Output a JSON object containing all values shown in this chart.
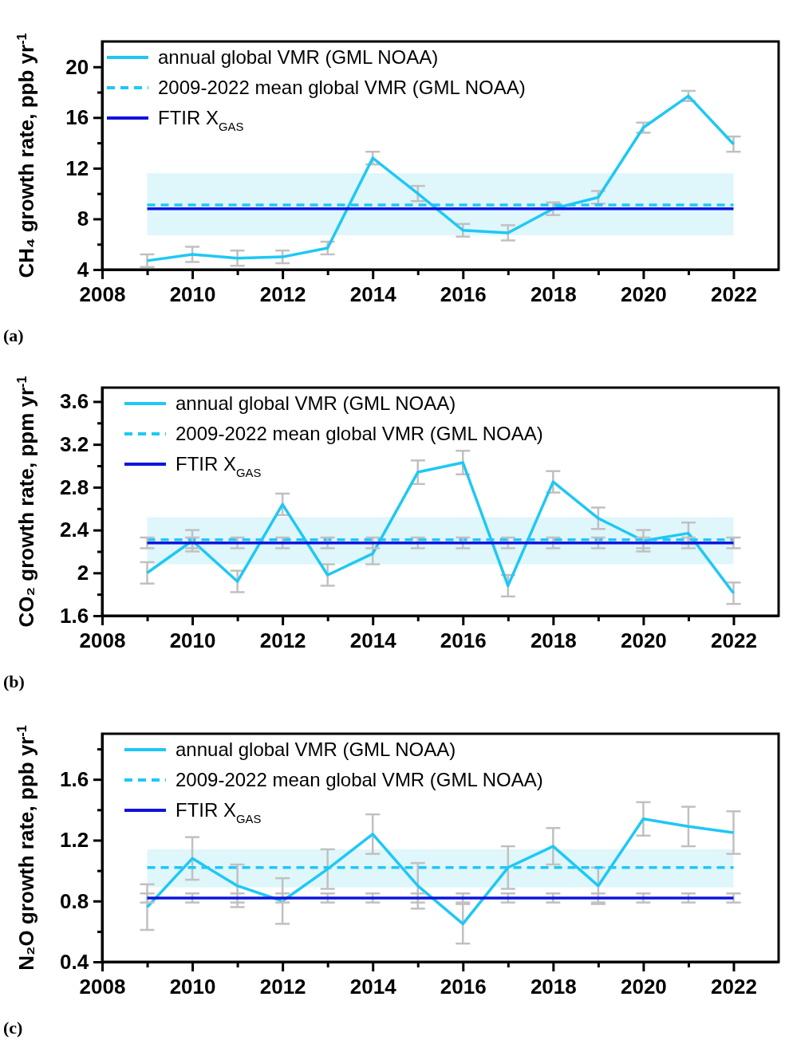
{
  "chart_data": [
    {
      "type": "line",
      "ylabel": "CH₄ growth rate, ppb yr$^{-1}$",
      "annotations": [
        "(a)"
      ],
      "xlim": [
        2008,
        2023
      ],
      "xticks": [
        2008,
        {
          "value": 2009,
          "label": null
        },
        2010,
        {
          "value": 2011,
          "label": null
        },
        2012,
        {
          "value": 2013,
          "label": null
        },
        2014,
        {
          "value": 2015,
          "label": null
        },
        2016,
        {
          "value": 2017,
          "label": null
        },
        2018,
        {
          "value": 2019,
          "label": null
        },
        2020,
        {
          "value": 2021,
          "label": null
        },
        2022
      ],
      "ylim": [
        4,
        22
      ],
      "yticks": [
        4,
        {
          "value": 6,
          "label": null
        },
        8,
        {
          "value": 10,
          "label": null
        },
        12,
        {
          "value": 14,
          "label": null
        },
        16,
        {
          "value": 18,
          "label": null
        },
        20
      ],
      "grid": false,
      "legend": "top left",
      "marker": "none",
      "bands": [
        {
          "axis": "y",
          "from": 6.7,
          "to": 11.6,
          "color": "#dff6fb"
        }
      ],
      "series": [
        {
          "name": "annual global VMR (GML NOAA)",
          "color": "#1ec8f5",
          "line_style": "solid",
          "x": [
            2009,
            2010,
            2011,
            2012,
            2013,
            2014,
            2015,
            2016,
            2017,
            2018,
            2019,
            2020,
            2021,
            2022
          ],
          "values": [
            4.7,
            5.2,
            4.9,
            5.0,
            5.7,
            12.8,
            10.0,
            7.1,
            6.9,
            8.8,
            9.7,
            15.2,
            17.7,
            13.9
          ],
          "errors": [
            0.5,
            0.6,
            0.6,
            0.5,
            0.5,
            0.5,
            0.6,
            0.5,
            0.6,
            0.5,
            0.5,
            0.4,
            0.4,
            0.6
          ]
        },
        {
          "name": "2009-2022 mean global VMR (GML NOAA)",
          "color": "#1ec8f5",
          "line_style": "dashed",
          "x": [
            2009,
            2022
          ],
          "values": [
            9.1,
            9.1
          ]
        },
        {
          "name": "FTIR X$_{GAS}$",
          "color": "#0f14dc",
          "line_style": "solid",
          "x": [
            2009,
            2022
          ],
          "values": [
            8.8,
            8.8
          ]
        }
      ]
    },
    {
      "type": "line",
      "ylabel": "CO₂ growth rate, ppm yr$^{-1}$",
      "annotations": [
        "(b)"
      ],
      "xlim": [
        2008,
        2023
      ],
      "xticks": [
        2008,
        {
          "value": 2009,
          "label": null
        },
        2010,
        {
          "value": 2011,
          "label": null
        },
        2012,
        {
          "value": 2013,
          "label": null
        },
        2014,
        {
          "value": 2015,
          "label": null
        },
        2016,
        {
          "value": 2017,
          "label": null
        },
        2018,
        {
          "value": 2019,
          "label": null
        },
        2020,
        {
          "value": 2021,
          "label": null
        },
        2022
      ],
      "ylim": [
        1.6,
        3.73
      ],
      "yticks": [
        1.6,
        {
          "value": 1.8,
          "label": null
        },
        2,
        {
          "value": 2.2,
          "label": null
        },
        2.4,
        {
          "value": 2.6,
          "label": null
        },
        2.8,
        {
          "value": 3.0,
          "label": null
        },
        3.2,
        {
          "value": 3.4,
          "label": null
        },
        3.6
      ],
      "grid": false,
      "legend": "top left",
      "marker": "none",
      "bands": [
        {
          "axis": "y",
          "from": 2.08,
          "to": 2.52,
          "color": "#dff6fb"
        }
      ],
      "series": [
        {
          "name": "annual global VMR (GML NOAA)",
          "color": "#1ec8f5",
          "line_style": "solid",
          "x": [
            2009,
            2010,
            2011,
            2012,
            2013,
            2014,
            2015,
            2016,
            2017,
            2018,
            2019,
            2020,
            2021,
            2022
          ],
          "values": [
            2.0,
            2.3,
            1.92,
            2.64,
            1.98,
            2.18,
            2.94,
            3.03,
            1.88,
            2.85,
            2.51,
            2.3,
            2.37,
            1.81
          ],
          "errors": [
            0.1,
            0.1,
            0.1,
            0.1,
            0.1,
            0.1,
            0.11,
            0.11,
            0.1,
            0.1,
            0.1,
            0.1,
            0.1,
            0.1
          ]
        },
        {
          "name": "2009-2022 mean global VMR (GML NOAA)",
          "color": "#1ec8f5",
          "line_style": "dashed",
          "x": [
            2009,
            2022
          ],
          "values": [
            2.31,
            2.31
          ]
        },
        {
          "name": "FTIR X$_{GAS}$",
          "color": "#0f14dc",
          "line_style": "solid",
          "x": [
            2009,
            2010,
            2011,
            2012,
            2013,
            2014,
            2015,
            2016,
            2017,
            2018,
            2019,
            2020,
            2021,
            2022
          ],
          "values": [
            2.28,
            2.28,
            2.28,
            2.28,
            2.28,
            2.28,
            2.28,
            2.28,
            2.28,
            2.28,
            2.28,
            2.28,
            2.28,
            2.28
          ],
          "errors": [
            0.05,
            0.05,
            0.05,
            0.05,
            0.05,
            0.05,
            0.05,
            0.05,
            0.05,
            0.05,
            0.05,
            0.05,
            0.05,
            0.05
          ]
        }
      ]
    },
    {
      "type": "line",
      "ylabel": "N₂O growth rate, ppb yr$^{-1}$",
      "annotations": [
        "(c)"
      ],
      "xlim": [
        2008,
        2023
      ],
      "xticks": [
        2008,
        {
          "value": 2009,
          "label": null
        },
        2010,
        {
          "value": 2011,
          "label": null
        },
        2012,
        {
          "value": 2013,
          "label": null
        },
        2014,
        {
          "value": 2015,
          "label": null
        },
        2016,
        {
          "value": 2017,
          "label": null
        },
        2018,
        {
          "value": 2019,
          "label": null
        },
        2020,
        {
          "value": 2021,
          "label": null
        },
        2022
      ],
      "ylim": [
        0.4,
        1.9
      ],
      "yticks": [
        0.4,
        {
          "value": 0.6,
          "label": null
        },
        0.8,
        {
          "value": 1.0,
          "label": null
        },
        1.2,
        {
          "value": 1.4,
          "label": null
        },
        1.6,
        {
          "value": 1.8,
          "label": null
        }
      ],
      "grid": false,
      "legend": "top left",
      "marker": "none",
      "bands": [
        {
          "axis": "y",
          "from": 0.89,
          "to": 1.14,
          "color": "#dff6fb"
        }
      ],
      "series": [
        {
          "name": "annual global VMR (GML NOAA)",
          "color": "#1ec8f5",
          "line_style": "solid",
          "x": [
            2009,
            2010,
            2011,
            2012,
            2013,
            2014,
            2015,
            2016,
            2017,
            2018,
            2019,
            2020,
            2021,
            2022
          ],
          "values": [
            0.76,
            1.08,
            0.9,
            0.8,
            1.01,
            1.24,
            0.9,
            0.65,
            1.02,
            1.16,
            0.9,
            1.34,
            1.29,
            1.25
          ],
          "errors": [
            0.15,
            0.14,
            0.14,
            0.15,
            0.13,
            0.13,
            0.15,
            0.13,
            0.14,
            0.12,
            0.12,
            0.11,
            0.13,
            0.14
          ]
        },
        {
          "name": "2009-2022 mean global VMR (GML NOAA)",
          "color": "#1ec8f5",
          "line_style": "dashed",
          "x": [
            2009,
            2022
          ],
          "values": [
            1.02,
            1.02
          ]
        },
        {
          "name": "FTIR X$_{GAS}$",
          "color": "#0f14dc",
          "line_style": "solid",
          "x": [
            2009,
            2010,
            2011,
            2012,
            2013,
            2014,
            2015,
            2016,
            2017,
            2018,
            2019,
            2020,
            2021,
            2022
          ],
          "values": [
            0.82,
            0.82,
            0.82,
            0.82,
            0.82,
            0.82,
            0.82,
            0.82,
            0.82,
            0.82,
            0.82,
            0.82,
            0.82,
            0.82
          ],
          "errors": [
            0.03,
            0.03,
            0.03,
            0.03,
            0.03,
            0.03,
            0.03,
            0.03,
            0.03,
            0.03,
            0.03,
            0.03,
            0.03,
            0.03
          ]
        }
      ]
    }
  ]
}
